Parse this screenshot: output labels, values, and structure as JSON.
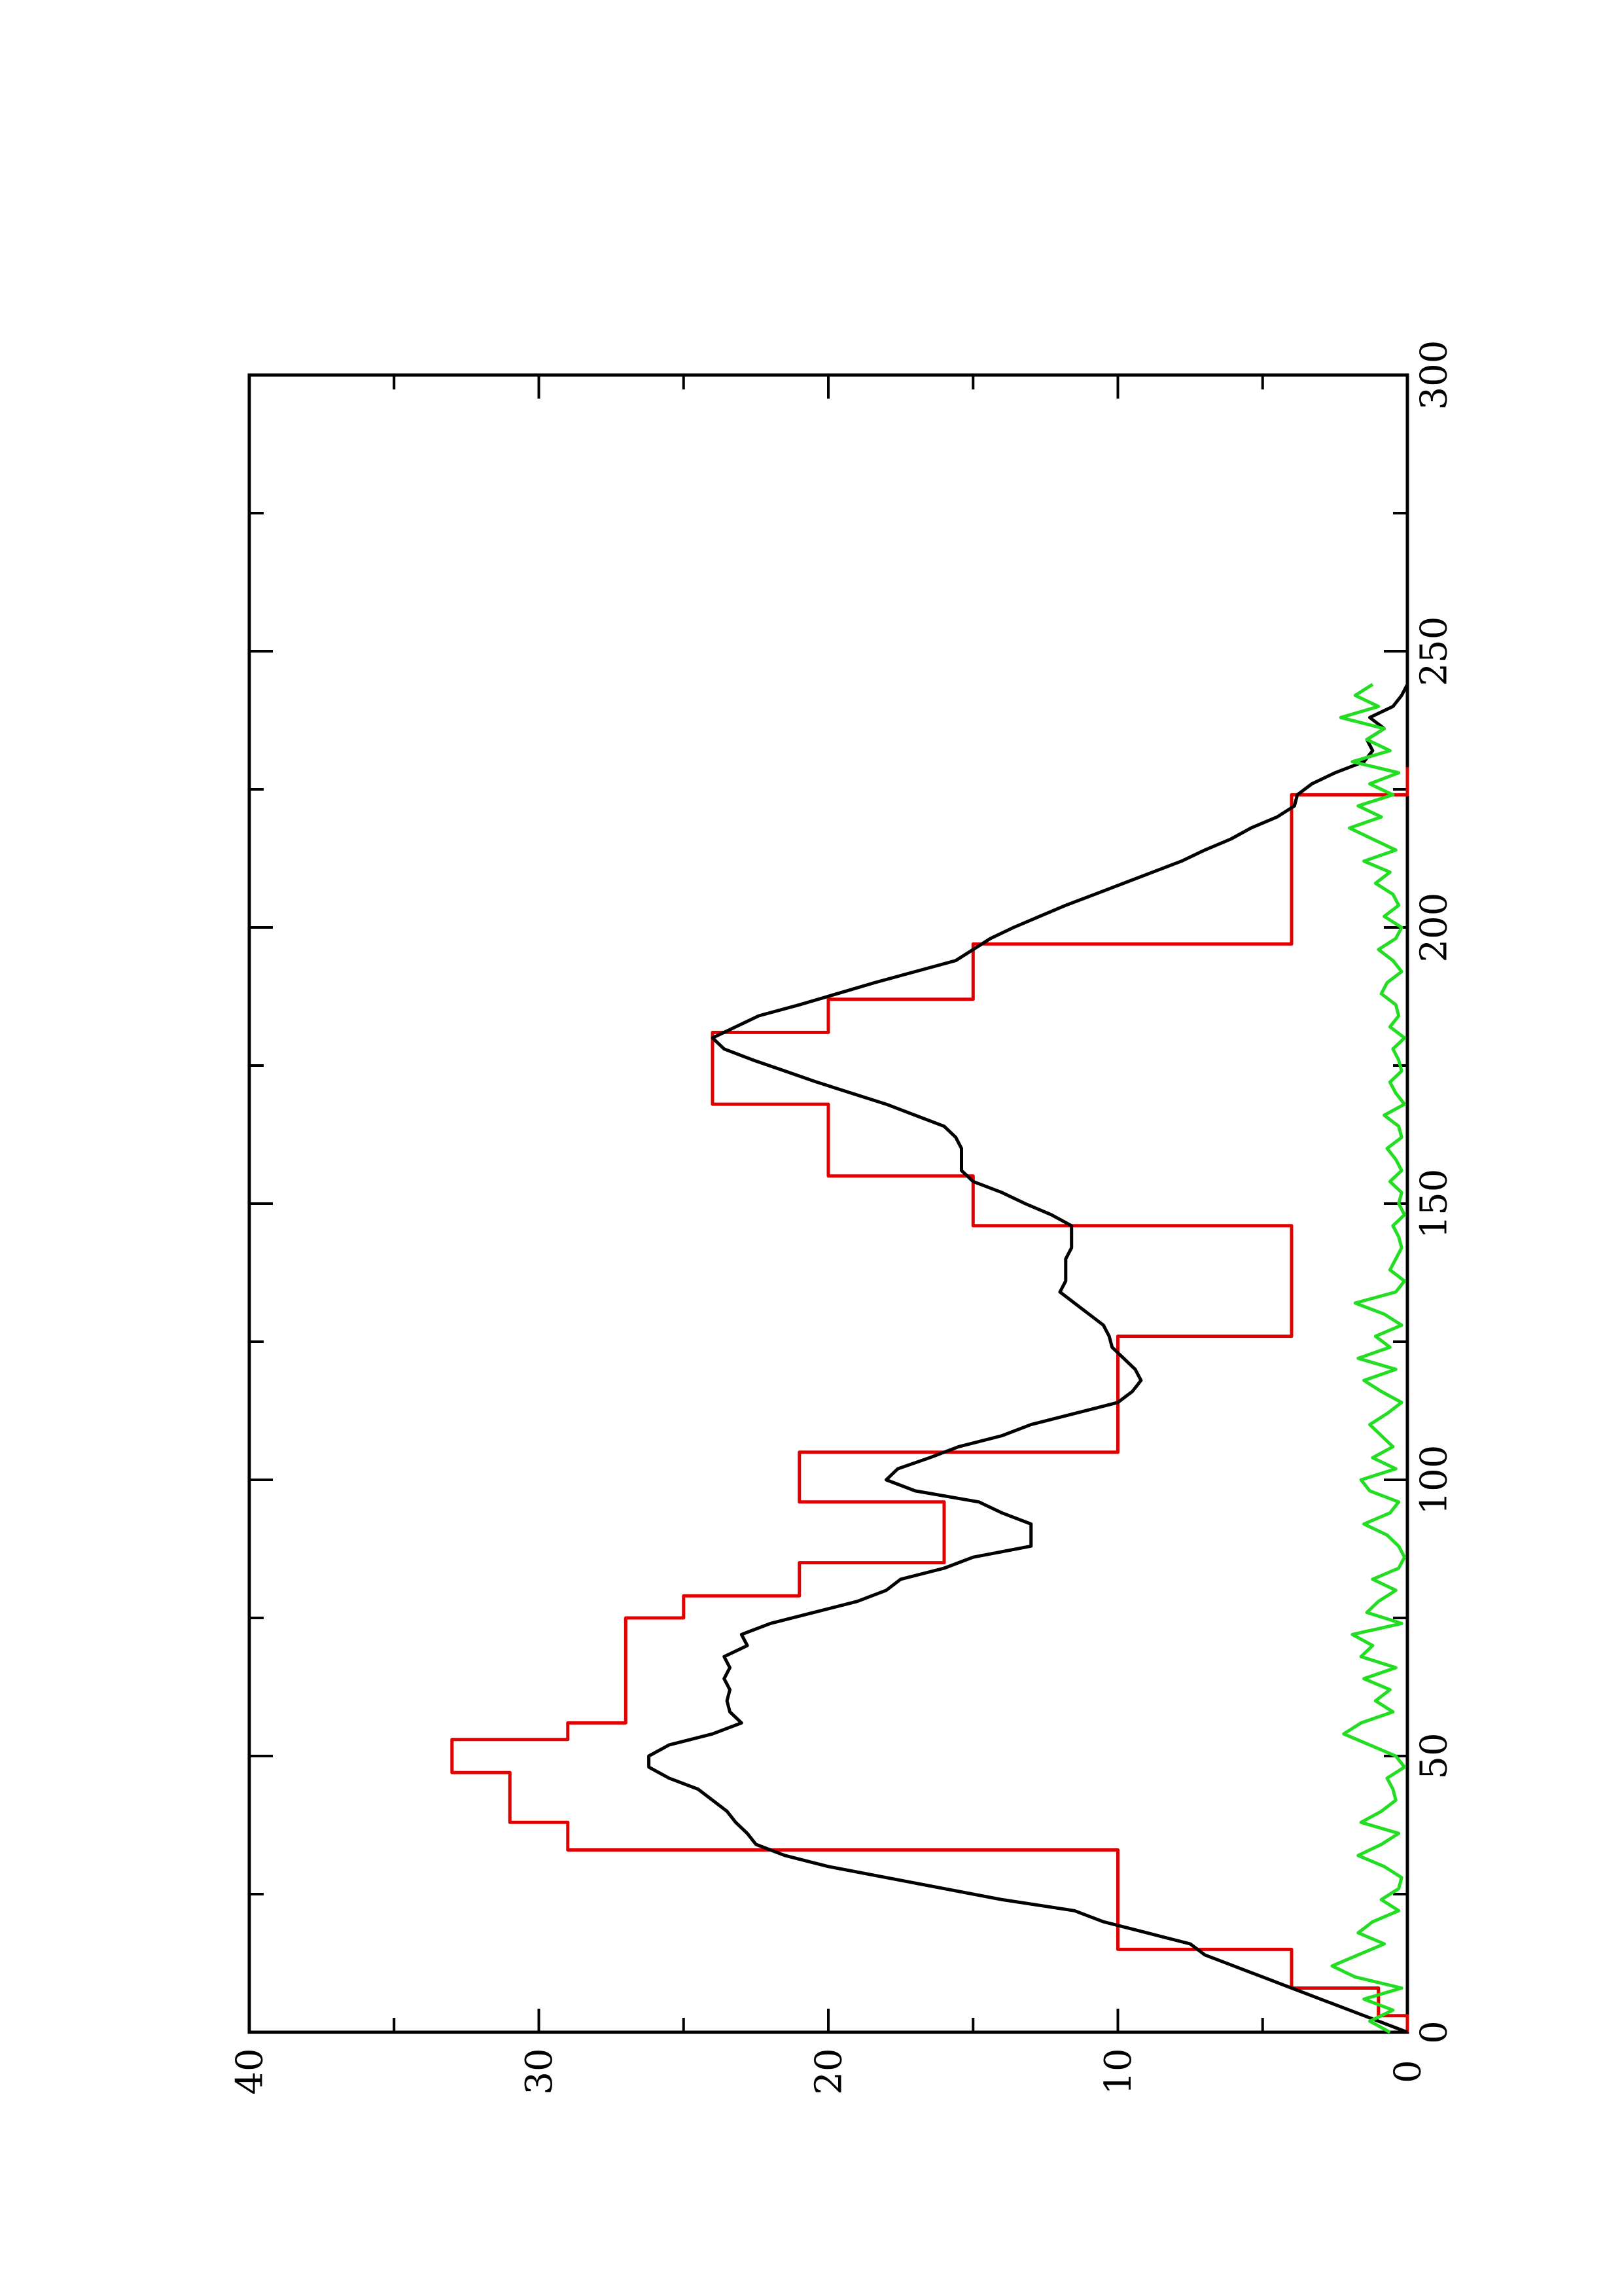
{
  "chart_data": {
    "type": "line",
    "orientation": "rotated-90-ccw",
    "title": "",
    "xlabel": "",
    "ylabel": "",
    "xlim": [
      0,
      300
    ],
    "ylim": [
      0,
      40
    ],
    "x_ticks": [
      0,
      50,
      100,
      150,
      200,
      250,
      300
    ],
    "x_tick_labels": [
      "0",
      "50",
      "100",
      "150",
      "200",
      "250",
      "300"
    ],
    "y_ticks": [
      0,
      10,
      20,
      30,
      40
    ],
    "y_tick_labels": [
      "0",
      "10",
      "20",
      "30",
      "40"
    ],
    "grid": false,
    "legend": "none",
    "series": [
      {
        "color": "#e00000",
        "x": [
          0,
          3,
          3,
          8,
          8,
          15,
          15,
          33,
          33,
          38,
          38,
          47,
          47,
          53,
          53,
          56,
          56,
          75,
          75,
          79,
          79,
          85,
          85,
          96,
          96,
          105,
          105,
          113,
          113,
          126,
          126,
          133,
          133,
          146,
          146,
          155,
          155,
          168,
          168,
          172,
          172,
          181,
          181,
          187,
          187,
          197,
          197,
          208,
          208,
          224,
          224,
          229
        ],
        "y": [
          0,
          0,
          1,
          1,
          4,
          4,
          10,
          10,
          29,
          29,
          31,
          31,
          33,
          33,
          29,
          29,
          27,
          27,
          25,
          25,
          21,
          21,
          16,
          16,
          21,
          21,
          10,
          10,
          10,
          10,
          4,
          4,
          4,
          4,
          15,
          15,
          20,
          20,
          24,
          24,
          24,
          24,
          20,
          20,
          15,
          15,
          4,
          4,
          4,
          4,
          0,
          0
        ]
      },
      {
        "color": "#000000",
        "x": [
          0,
          2,
          4,
          6,
          8,
          10,
          12,
          14,
          16,
          18,
          20,
          22,
          24,
          26,
          28,
          30,
          32,
          34,
          36,
          38,
          40,
          42,
          44,
          46,
          48,
          50,
          52,
          54,
          56,
          58,
          60,
          62,
          64,
          66,
          68,
          70,
          72,
          74,
          76,
          78,
          80,
          82,
          84,
          86,
          88,
          90,
          92,
          94,
          96,
          98,
          100,
          102,
          104,
          106,
          108,
          110,
          112,
          114,
          116,
          118,
          120,
          122,
          124,
          126,
          128,
          130,
          132,
          134,
          136,
          138,
          140,
          142,
          144,
          146,
          148,
          150,
          152,
          154,
          156,
          158,
          160,
          162,
          164,
          166,
          168,
          170,
          172,
          174,
          176,
          178,
          180,
          182,
          184,
          186,
          188,
          190,
          192,
          194,
          196,
          198,
          200,
          202,
          204,
          206,
          208,
          210,
          212,
          214,
          216,
          218,
          220,
          222,
          224,
          226,
          228,
          230,
          232,
          234,
          236,
          238,
          240,
          242,
          244
        ],
        "y": [
          0,
          1,
          2,
          3,
          4,
          5,
          6,
          7,
          7.5,
          9,
          10.5,
          11.5,
          14,
          16,
          18,
          20,
          21.5,
          22.5,
          22.8,
          23.2,
          23.5,
          24,
          24.5,
          25.5,
          26.2,
          26.2,
          25.5,
          24,
          23,
          23.4,
          23.5,
          23.4,
          23.6,
          23.4,
          23.6,
          22.8,
          23,
          22,
          20.5,
          19,
          18,
          17.5,
          16,
          15,
          13,
          13,
          13,
          14,
          14.8,
          17,
          18,
          17.6,
          16.5,
          15.5,
          14,
          13,
          11.5,
          10,
          9.5,
          9.2,
          9.4,
          9.8,
          10.2,
          10.3,
          10.5,
          11,
          11.5,
          12,
          11.8,
          11.8,
          11.8,
          11.6,
          11.6,
          11.6,
          12.3,
          13.2,
          14,
          15,
          15.4,
          15.4,
          15.4,
          15.6,
          16,
          17,
          18,
          19.2,
          20.4,
          21.5,
          22.6,
          23.6,
          24,
          23.2,
          22.4,
          21,
          19.7,
          18.4,
          17,
          15.6,
          15,
          14.4,
          13.6,
          12.7,
          11.8,
          10.8,
          9.8,
          8.8,
          7.8,
          7,
          6.1,
          5.4,
          4.5,
          3.9,
          3.8,
          3.3,
          2.5,
          1.5,
          1.2,
          1.4,
          0.8,
          1.3,
          0.5,
          0.2,
          0
        ]
      },
      {
        "color": "#22dd22",
        "x": [
          0,
          2,
          4,
          6,
          8,
          10,
          12,
          14,
          16,
          18,
          20,
          22,
          24,
          26,
          28,
          30,
          32,
          34,
          36,
          38,
          40,
          42,
          44,
          46,
          48,
          50,
          52,
          54,
          56,
          58,
          60,
          62,
          64,
          66,
          68,
          70,
          72,
          74,
          76,
          78,
          80,
          82,
          84,
          86,
          88,
          90,
          92,
          94,
          96,
          98,
          100,
          102,
          104,
          106,
          108,
          110,
          112,
          114,
          116,
          118,
          120,
          122,
          124,
          126,
          128,
          130,
          132,
          134,
          136,
          138,
          140,
          142,
          144,
          146,
          148,
          150,
          152,
          154,
          156,
          158,
          160,
          162,
          164,
          166,
          168,
          170,
          172,
          174,
          176,
          178,
          180,
          182,
          184,
          186,
          188,
          190,
          192,
          194,
          196,
          198,
          200,
          202,
          204,
          206,
          208,
          210,
          212,
          214,
          216,
          218,
          220,
          222,
          224,
          226,
          228,
          230,
          232,
          234,
          236,
          238,
          240,
          242,
          244
        ],
        "y": [
          0.6,
          1.3,
          0.5,
          1.5,
          0.2,
          1.8,
          2.6,
          1.7,
          0.8,
          1.7,
          1.2,
          0.3,
          0.9,
          0.3,
          0.2,
          0.8,
          1.7,
          0.9,
          0.3,
          1.6,
          0.9,
          0.4,
          0.5,
          0.7,
          0.1,
          0.4,
          1.3,
          2.2,
          1.6,
          0.5,
          1.1,
          0.6,
          1.5,
          0.4,
          1.6,
          1.2,
          1.9,
          0.2,
          1.4,
          1.0,
          0.4,
          1.2,
          0.3,
          0.1,
          0.3,
          0.7,
          1.5,
          0.6,
          0.3,
          1.3,
          1.6,
          0.4,
          1.2,
          0.5,
          0.9,
          1.3,
          0.7,
          0.2,
          0.9,
          1.5,
          0.4,
          1.7,
          0.6,
          1.1,
          0.2,
          0.8,
          1.8,
          0.4,
          0.1,
          0.6,
          0.4,
          0.2,
          0.3,
          0.5,
          0.1,
          0.3,
          0.2,
          0.6,
          0.2,
          0.4,
          0.7,
          0.2,
          0.3,
          0.8,
          0.1,
          0.4,
          0.6,
          0.2,
          0.3,
          0.5,
          0.1,
          0.6,
          0.3,
          0.4,
          0.9,
          0.7,
          0.2,
          0.5,
          1.0,
          0.4,
          0.2,
          0.8,
          0.3,
          0.5,
          1.1,
          0.6,
          1.5,
          0.4,
          1.2,
          2.0,
          0.9,
          1.7,
          0.5,
          1.3,
          0.3,
          1.9,
          0.6,
          1.4,
          0.8,
          2.3,
          1.0,
          1.8,
          1.2
        ]
      }
    ]
  }
}
